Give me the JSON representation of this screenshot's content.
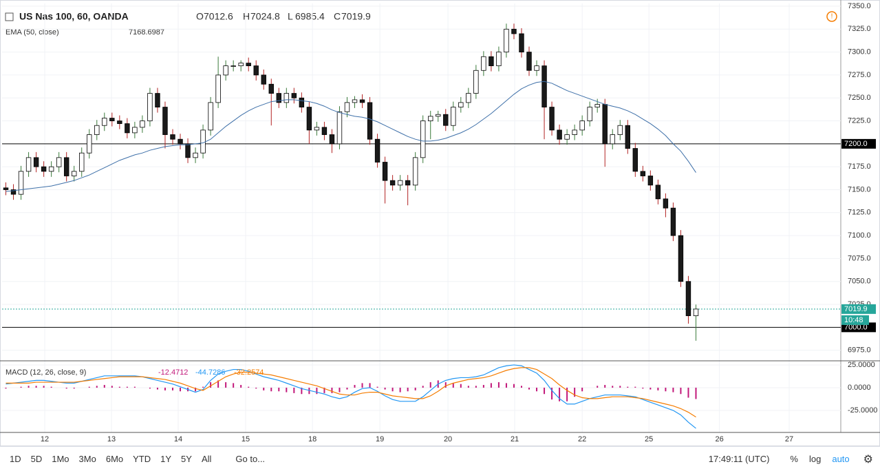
{
  "header": {
    "symbol": "US Nas 100, 60, OANDA",
    "ohlc_labels": [
      "O",
      "H",
      "L",
      "C"
    ]
  },
  "chart_data": [
    {
      "type": "candlestick",
      "up_color": "#ffffff",
      "down_color": "#1a1a1a",
      "wick_up": "#3a7a3a",
      "wick_down": "#b22222",
      "open": [
        7152,
        7150,
        7145,
        7170,
        7185,
        7175,
        7170,
        7175,
        7185,
        7165,
        7170,
        7190,
        7210,
        7220,
        7228,
        7225,
        7222,
        7212,
        7218,
        7225,
        7255,
        7240,
        7210,
        7205,
        7200,
        7185,
        7190,
        7215,
        7245,
        7275,
        7285,
        7285,
        7288,
        7285,
        7275,
        7265,
        7255,
        7245,
        7255,
        7250,
        7240,
        7215,
        7218,
        7210,
        7200,
        7235,
        7245,
        7248,
        7245,
        7205,
        7180,
        7160,
        7155,
        7160,
        7155,
        7185,
        7225,
        7230,
        7232,
        7220,
        7240,
        7245,
        7255,
        7280,
        7295,
        7285,
        7300,
        7325,
        7320,
        7300,
        7280,
        7285,
        7240,
        7215,
        7205,
        7210,
        7215,
        7225,
        7240,
        7243,
        7200,
        7210,
        7220,
        7195,
        7170,
        7165,
        7155,
        7140,
        7130,
        7100,
        7050,
        7012.6
      ],
      "high": [
        7158,
        7156,
        7176,
        7191,
        7191,
        7181,
        7181,
        7191,
        7191,
        7176,
        7196,
        7216,
        7226,
        7234,
        7234,
        7231,
        7228,
        7224,
        7231,
        7261,
        7261,
        7246,
        7216,
        7211,
        7206,
        7196,
        7221,
        7251,
        7295,
        7291,
        7291,
        7291,
        7294,
        7291,
        7281,
        7271,
        7261,
        7261,
        7261,
        7256,
        7246,
        7224,
        7224,
        7216,
        7241,
        7251,
        7252,
        7254,
        7251,
        7211,
        7186,
        7166,
        7166,
        7166,
        7191,
        7231,
        7236,
        7236,
        7238,
        7246,
        7251,
        7261,
        7286,
        7301,
        7301,
        7306,
        7331,
        7331,
        7326,
        7306,
        7291,
        7291,
        7246,
        7221,
        7216,
        7221,
        7231,
        7246,
        7249,
        7249,
        7216,
        7226,
        7226,
        7201,
        7176,
        7171,
        7161,
        7146,
        7136,
        7106,
        7056,
        7024.8
      ],
      "low": [
        7144,
        7139,
        7139,
        7164,
        7169,
        7164,
        7164,
        7169,
        7159,
        7159,
        7164,
        7184,
        7204,
        7214,
        7219,
        7216,
        7206,
        7206,
        7212,
        7219,
        7234,
        7195,
        7199,
        7194,
        7179,
        7179,
        7184,
        7209,
        7239,
        7269,
        7279,
        7279,
        7279,
        7269,
        7259,
        7220,
        7239,
        7239,
        7244,
        7234,
        7200,
        7209,
        7204,
        7190,
        7194,
        7229,
        7239,
        7239,
        7199,
        7174,
        7135,
        7149,
        7149,
        7133,
        7149,
        7179,
        7205,
        7224,
        7214,
        7214,
        7234,
        7239,
        7249,
        7274,
        7279,
        7279,
        7294,
        7314,
        7294,
        7274,
        7274,
        7205,
        7209,
        7199,
        7199,
        7204,
        7209,
        7219,
        7234,
        7175,
        7194,
        7204,
        7189,
        7164,
        7159,
        7149,
        7134,
        7120,
        7094,
        7044,
        7004,
        6985.4
      ],
      "close": [
        7150,
        7145,
        7170,
        7185,
        7175,
        7170,
        7175,
        7185,
        7165,
        7170,
        7190,
        7210,
        7220,
        7228,
        7225,
        7222,
        7212,
        7218,
        7225,
        7255,
        7240,
        7210,
        7205,
        7200,
        7185,
        7190,
        7215,
        7245,
        7275,
        7285,
        7285,
        7288,
        7285,
        7275,
        7265,
        7255,
        7245,
        7255,
        7250,
        7240,
        7215,
        7218,
        7210,
        7200,
        7235,
        7245,
        7248,
        7245,
        7205,
        7180,
        7160,
        7155,
        7160,
        7155,
        7185,
        7225,
        7230,
        7232,
        7220,
        7240,
        7245,
        7255,
        7280,
        7295,
        7285,
        7300,
        7325,
        7320,
        7300,
        7280,
        7285,
        7240,
        7215,
        7205,
        7210,
        7215,
        7225,
        7240,
        7243,
        7200,
        7210,
        7220,
        7195,
        7170,
        7165,
        7155,
        7140,
        7130,
        7100,
        7050,
        7012.6,
        7019.9
      ],
      "ema": {
        "name": "EMA (50, close)",
        "color": "#3d6fa8",
        "values": [
          7148,
          7149,
          7150,
          7151,
          7152,
          7153,
          7154,
          7156,
          7158,
          7160,
          7163,
          7166,
          7170,
          7174,
          7178,
          7182,
          7185,
          7188,
          7190,
          7193,
          7195,
          7197,
          7198,
          7199,
          7199,
          7200,
          7201,
          7205,
          7212,
          7219,
          7225,
          7231,
          7236,
          7240,
          7243,
          7246,
          7247,
          7248,
          7248,
          7247,
          7246,
          7244,
          7241,
          7237,
          7234,
          7232,
          7230,
          7229,
          7227,
          7224,
          7220,
          7216,
          7212,
          7208,
          7205,
          7203,
          7203,
          7204,
          7206,
          7209,
          7212,
          7216,
          7221,
          7227,
          7233,
          7240,
          7247,
          7254,
          7260,
          7264,
          7267,
          7268,
          7266,
          7262,
          7258,
          7255,
          7252,
          7249,
          7246,
          7243,
          7241,
          7239,
          7236,
          7232,
          7227,
          7222,
          7216,
          7209,
          7200,
          7192,
          7181,
          7168.6987
        ]
      },
      "xlim": [
        0,
        110.6
      ],
      "xticks": [
        {
          "value": 5.63,
          "label": "12"
        },
        {
          "value": 14.43,
          "label": "13"
        },
        {
          "value": 23.23,
          "label": "14"
        },
        {
          "value": 32.12,
          "label": "15"
        },
        {
          "value": 40.93,
          "label": "18"
        },
        {
          "value": 49.82,
          "label": "19"
        },
        {
          "value": 58.8,
          "label": "20"
        },
        {
          "value": 67.6,
          "label": "21"
        },
        {
          "value": 76.5,
          "label": "22"
        },
        {
          "value": 85.3,
          "label": "25"
        },
        {
          "value": 94.6,
          "label": "26"
        },
        {
          "value": 103.8,
          "label": "27"
        }
      ],
      "ylim": [
        6965,
        7353
      ],
      "yticks": [
        {
          "value": 6975,
          "label": "6975.0"
        },
        {
          "value": 7025,
          "label": "7025.0"
        },
        {
          "value": 7050,
          "label": "7050.0"
        },
        {
          "value": 7075,
          "label": "7075.0"
        },
        {
          "value": 7100,
          "label": "7100.0"
        },
        {
          "value": 7125,
          "label": "7125.0"
        },
        {
          "value": 7150,
          "label": "7150.0"
        },
        {
          "value": 7175,
          "label": "7175.0"
        },
        {
          "value": 7225,
          "label": "7225.0"
        },
        {
          "value": 7250,
          "label": "7250.0"
        },
        {
          "value": 7275,
          "label": "7275.0"
        },
        {
          "value": 7300,
          "label": "7300.0"
        },
        {
          "value": 7325,
          "label": "7325.0"
        },
        {
          "value": 7350,
          "label": "7350.0"
        }
      ],
      "hlines": [
        {
          "value": 7200,
          "label": "7200.0"
        },
        {
          "value": 7000,
          "label": "7000.0"
        }
      ],
      "last_color": "#26a69a",
      "countdown": "10:48",
      "grid": true
    },
    {
      "type": "macd",
      "name": "MACD (12, 26, close, 9)",
      "xlim": [
        0,
        110.6
      ],
      "ylim": [
        -49.2,
        29.5
      ],
      "yticks": [
        {
          "value": 25,
          "label": "25.0000"
        },
        {
          "value": 0,
          "label": "0.0000"
        },
        {
          "value": -25,
          "label": "-25.0000"
        }
      ],
      "series": [
        {
          "style": "histogram",
          "color": "#c2187a",
          "values": [
            -1,
            0,
            1,
            2,
            2,
            2,
            1,
            0,
            -1,
            -1,
            0,
            1,
            2,
            3,
            2,
            1,
            1,
            1,
            0,
            -1,
            -2,
            -3,
            -3,
            -4,
            -4,
            -4,
            1,
            6,
            8,
            6,
            5,
            3,
            1,
            -1,
            -3,
            -4,
            -4,
            -5,
            -6,
            -7,
            -7,
            -7,
            -6,
            -6,
            -5,
            -2,
            3,
            5,
            5,
            1,
            -2,
            -4,
            -5,
            -4,
            -3,
            2,
            6,
            8,
            6,
            5,
            4,
            2,
            2,
            3,
            5,
            6,
            5,
            4,
            2,
            -2,
            -4,
            -7,
            -13,
            -15,
            -15,
            -10,
            -4,
            0,
            2,
            3,
            2,
            2,
            1,
            1,
            -1,
            -2,
            -3,
            -4,
            -5,
            -7,
            -11,
            -12.4712
          ]
        },
        {
          "style": "line",
          "color": "#2196f3",
          "values": [
            4,
            5,
            6,
            7,
            8,
            8,
            7,
            6,
            5,
            5,
            7,
            9,
            11,
            13,
            13,
            13,
            13,
            13,
            12,
            10,
            8,
            6,
            4,
            1,
            -2,
            -5,
            -2,
            8,
            15,
            18,
            20,
            20,
            18,
            15,
            12,
            10,
            8,
            5,
            2,
            -1,
            -3,
            -5,
            -7,
            -10,
            -12,
            -10,
            -5,
            -1,
            0,
            -4,
            -9,
            -13,
            -15,
            -15,
            -15,
            -10,
            -3,
            4,
            8,
            10,
            11,
            11,
            12,
            14,
            18,
            22,
            24,
            25,
            24,
            20,
            16,
            8,
            -3,
            -12,
            -18,
            -18,
            -15,
            -12,
            -10,
            -8,
            -8,
            -8,
            -9,
            -10,
            -13,
            -16,
            -19,
            -22,
            -25,
            -30,
            -38,
            -44.7286
          ]
        },
        {
          "style": "line",
          "color": "#f57c00",
          "values": [
            5,
            5,
            5,
            5,
            6,
            6,
            6,
            6,
            6,
            6,
            7,
            8,
            9,
            10,
            11,
            12,
            12,
            12,
            12,
            11,
            10,
            9,
            7,
            5,
            2,
            -1,
            -3,
            2,
            7,
            12,
            15,
            17,
            17,
            16,
            15,
            14,
            12,
            10,
            8,
            6,
            4,
            2,
            -1,
            -4,
            -7,
            -8,
            -8,
            -6,
            -5,
            -5,
            -7,
            -9,
            -10,
            -11,
            -12,
            -12,
            -9,
            -4,
            2,
            5,
            7,
            9,
            10,
            11,
            13,
            16,
            19,
            21,
            22,
            22,
            20,
            15,
            10,
            3,
            -3,
            -8,
            -11,
            -12,
            -12,
            -11,
            -10,
            -10,
            -10,
            -11,
            -12,
            -14,
            -16,
            -18,
            -20,
            -23,
            -27,
            -32.2574
          ]
        }
      ],
      "grid": true
    }
  ],
  "toolbar": {
    "ranges": [
      "1D",
      "5D",
      "1Mo",
      "3Mo",
      "6Mo",
      "YTD",
      "1Y",
      "5Y",
      "All"
    ],
    "goto": "Go to...",
    "clock": "17:49:11 (UTC)",
    "options": [
      "%",
      "log",
      "auto"
    ]
  }
}
